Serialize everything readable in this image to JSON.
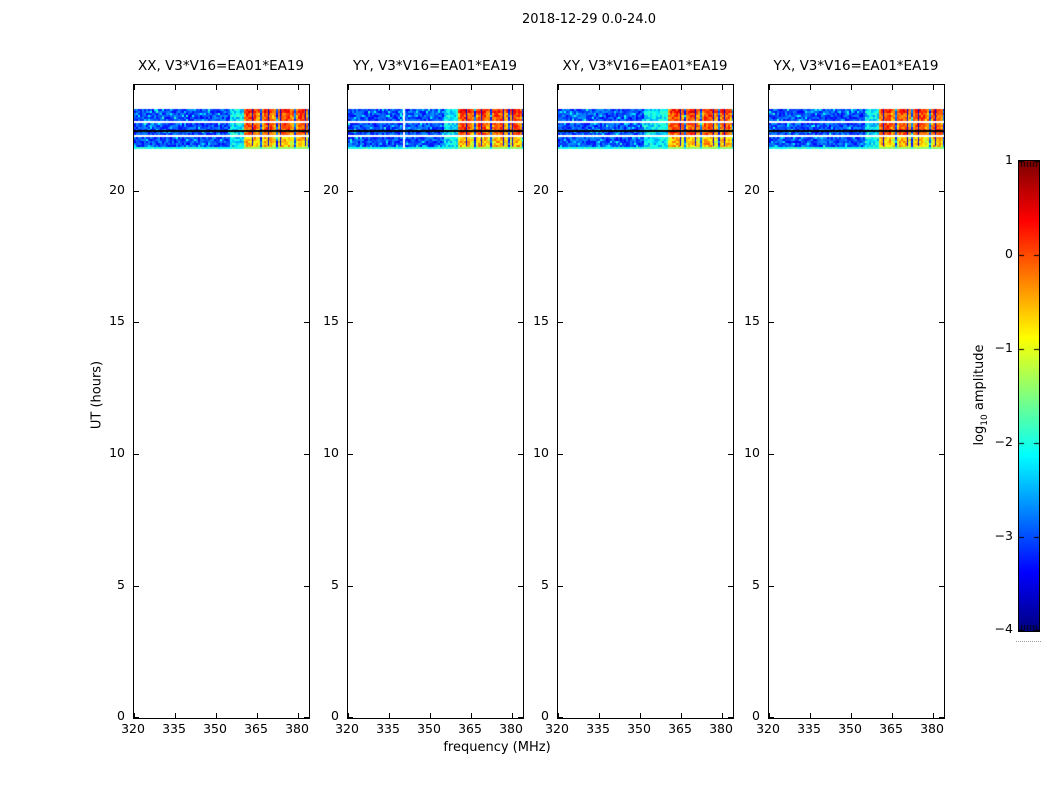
{
  "chart_data": {
    "type": "heatmap",
    "title": "2018-12-29 0.0-24.0",
    "xlabel": "frequency (MHz)",
    "ylabel": "UT (hours)",
    "x_range_mhz": [
      320,
      384
    ],
    "y_range_hours": [
      0,
      24
    ],
    "x_ticks": [
      320,
      335,
      350,
      365,
      380
    ],
    "y_ticks": [
      0,
      5,
      10,
      15,
      20
    ],
    "grid": false,
    "colormap": "jet",
    "panels": [
      {
        "label": "XX, V3*V16=EA01*EA19"
      },
      {
        "label": "YY, V3*V16=EA01*EA19",
        "dropout_mhz": 340
      },
      {
        "label": "XY, V3*V16=EA01*EA19",
        "transition_start_mhz": 351
      },
      {
        "label": "YX, V3*V16=EA01*EA19"
      }
    ],
    "band": {
      "description": "observation block: blue background noise (log10 amp ~ -3) spanning full band, bright RFI blocks above 360 MHz, two white integration-gap lines and one black flagged line",
      "ut_start": 21.6,
      "ut_end": 23.1,
      "background_log_amp": [
        -3.4,
        -2.6
      ],
      "white_gap_lines_ut": [
        22.6,
        22.05
      ],
      "black_line_ut": 22.25,
      "transition_start_mhz": 355,
      "rfi_start_mhz": 360,
      "rfi_blocks_mhz": [
        [
          360.0,
          365.5
        ],
        [
          366.5,
          371.5
        ],
        [
          372.5,
          378.0
        ],
        [
          379.0,
          383.5
        ]
      ],
      "rfi_log_amp_rows12": [
        -0.4,
        0.4
      ],
      "rfi_log_amp_row3": [
        -1.0,
        -0.1
      ]
    },
    "colorbar": {
      "label_prefix": "log",
      "label_sub": "10",
      "label_suffix": " amplitude",
      "tick_labels": [
        "1",
        "0",
        "−1",
        "−2",
        "−3",
        "−4"
      ],
      "tick_values": [
        1,
        0,
        -1,
        -2,
        -3,
        -4
      ],
      "range": [
        -4,
        1
      ]
    }
  }
}
